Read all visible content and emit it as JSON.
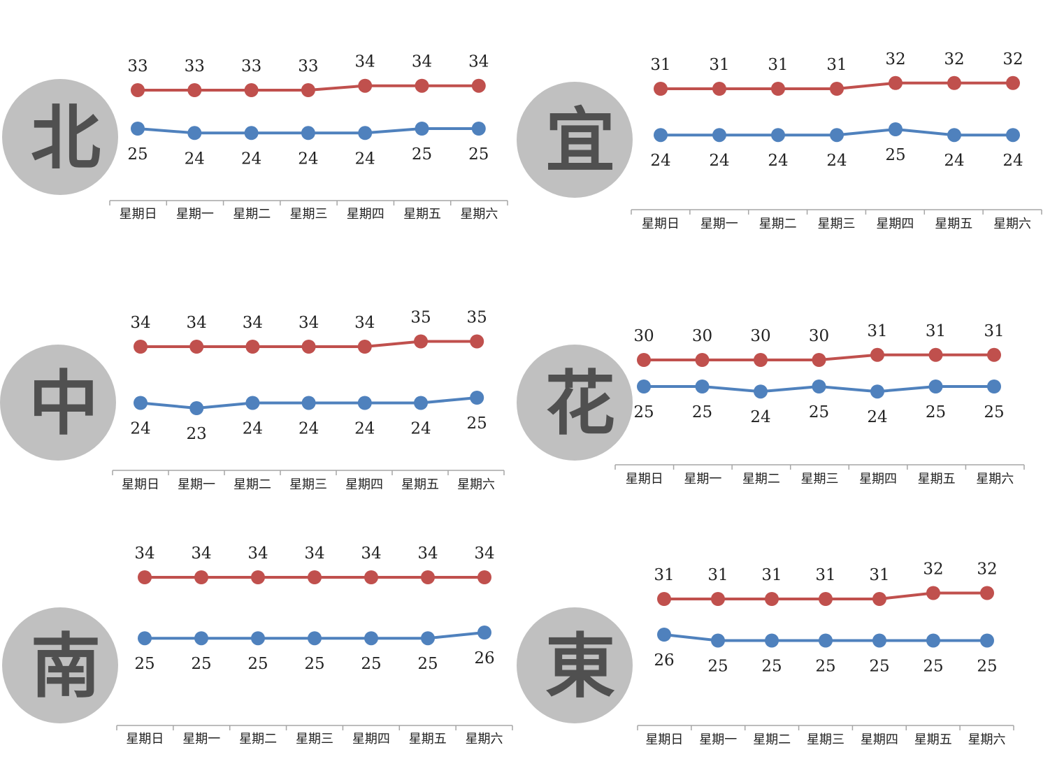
{
  "colors": {
    "high": "#c0504d",
    "low": "#4f81bd",
    "circle": "#c0c0c0",
    "axis": "#a6a6a6"
  },
  "categories": [
    "星期日",
    "星期一",
    "星期二",
    "星期三",
    "星期四",
    "星期五",
    "星期六"
  ],
  "chart_data": [
    {
      "type": "line",
      "region": "北",
      "categories": [
        "星期日",
        "星期一",
        "星期二",
        "星期三",
        "星期四",
        "星期五",
        "星期六"
      ],
      "series": [
        {
          "values": [
            33,
            33,
            33,
            33,
            34,
            34,
            34
          ]
        },
        {
          "values": [
            25,
            24,
            24,
            24,
            24,
            25,
            25
          ]
        }
      ]
    },
    {
      "type": "line",
      "region": "宜",
      "categories": [
        "星期日",
        "星期一",
        "星期二",
        "星期三",
        "星期四",
        "星期五",
        "星期六"
      ],
      "series": [
        {
          "values": [
            31,
            31,
            31,
            31,
            32,
            32,
            32
          ]
        },
        {
          "values": [
            24,
            24,
            24,
            24,
            25,
            24,
            24
          ]
        }
      ]
    },
    {
      "type": "line",
      "region": "中",
      "categories": [
        "星期日",
        "星期一",
        "星期二",
        "星期三",
        "星期四",
        "星期五",
        "星期六"
      ],
      "series": [
        {
          "values": [
            34,
            34,
            34,
            34,
            34,
            35,
            35
          ]
        },
        {
          "values": [
            24,
            23,
            24,
            24,
            24,
            24,
            25
          ]
        }
      ]
    },
    {
      "type": "line",
      "region": "花",
      "categories": [
        "星期日",
        "星期一",
        "星期二",
        "星期三",
        "星期四",
        "星期五",
        "星期六"
      ],
      "series": [
        {
          "values": [
            30,
            30,
            30,
            30,
            31,
            31,
            31
          ]
        },
        {
          "values": [
            25,
            25,
            24,
            25,
            24,
            25,
            25
          ]
        }
      ]
    },
    {
      "type": "line",
      "region": "南",
      "categories": [
        "星期日",
        "星期一",
        "星期二",
        "星期三",
        "星期四",
        "星期五",
        "星期六"
      ],
      "series": [
        {
          "values": [
            34,
            34,
            34,
            34,
            34,
            34,
            34
          ]
        },
        {
          "values": [
            25,
            25,
            25,
            25,
            25,
            25,
            26
          ]
        }
      ]
    },
    {
      "type": "line",
      "region": "東",
      "categories": [
        "星期日",
        "星期一",
        "星期二",
        "星期三",
        "星期四",
        "星期五",
        "星期六"
      ],
      "series": [
        {
          "values": [
            31,
            31,
            31,
            31,
            31,
            32,
            32
          ]
        },
        {
          "values": [
            26,
            25,
            25,
            25,
            25,
            25,
            25
          ]
        }
      ]
    }
  ]
}
